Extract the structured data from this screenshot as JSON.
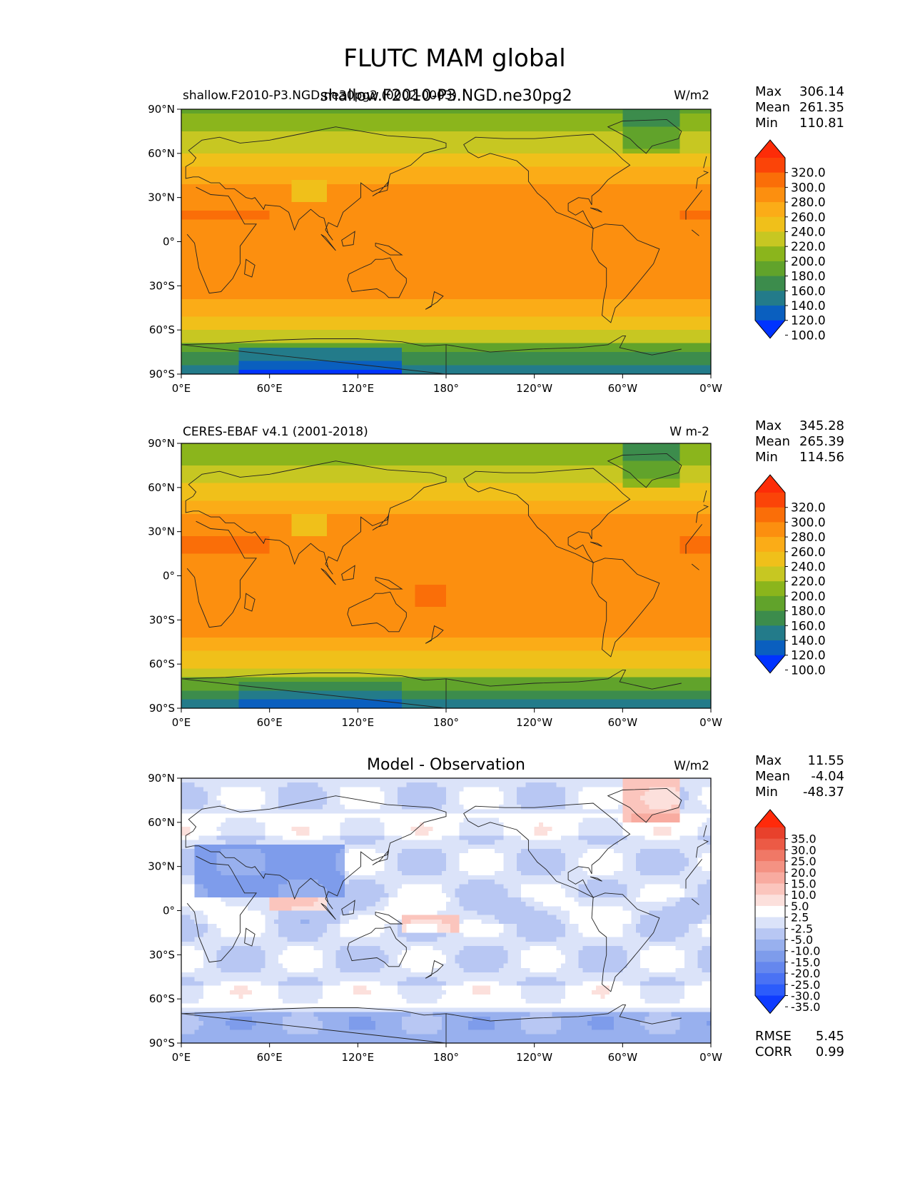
{
  "figure": {
    "title": "FLUTC MAM global"
  },
  "panels": [
    {
      "id": "test",
      "overlay_title": "shallow.F2010-P3.NGD.ne30pg2",
      "left_title": "shallow.F2010-P3.NGD.ne30pg2 (0002-0003)",
      "center_title": "",
      "units": "W/m2",
      "stats": {
        "max_label": "Max",
        "max": "306.14",
        "mean_label": "Mean",
        "mean": "261.35",
        "min_label": "Min",
        "min": "110.81"
      },
      "colorbar": "abs",
      "field": "test"
    },
    {
      "id": "ref",
      "overlay_title": "",
      "left_title": "CERES-EBAF v4.1 (2001-2018)",
      "center_title": "",
      "units": "W m-2",
      "stats": {
        "max_label": "Max",
        "max": "345.28",
        "mean_label": "Mean",
        "mean": "265.39",
        "min_label": "Min",
        "min": "114.56"
      },
      "colorbar": "abs",
      "field": "ref"
    },
    {
      "id": "diff",
      "overlay_title": "",
      "left_title": "",
      "center_title": "Model - Observation",
      "units": "W/m2",
      "stats": {
        "max_label": "Max",
        "max": "11.55",
        "mean_label": "Mean",
        "mean": "-4.04",
        "min_label": "Min",
        "min": "-48.37"
      },
      "metrics": {
        "rmse_label": "RMSE",
        "rmse": "5.45",
        "corr_label": "CORR",
        "corr": "0.99"
      },
      "colorbar": "diff",
      "field": "diff"
    }
  ],
  "axes": {
    "lat_ticks": [
      "90°N",
      "60°N",
      "30°N",
      "0°",
      "30°S",
      "60°S",
      "90°S"
    ],
    "lon_ticks": [
      "0°E",
      "60°E",
      "120°E",
      "180°",
      "120°W",
      "60°W",
      "0°W"
    ]
  },
  "colorbars": {
    "abs": {
      "labels": [
        "320.0",
        "300.0",
        "280.0",
        "260.0",
        "240.0",
        "220.0",
        "200.0",
        "180.0",
        "160.0",
        "140.0",
        "120.0",
        "100.0"
      ],
      "bounds": [
        100,
        120,
        140,
        160,
        180,
        200,
        220,
        240,
        260,
        280,
        300,
        320
      ],
      "colors": [
        "#0033ff",
        "#0a5fbf",
        "#237b8a",
        "#3c8c4c",
        "#61a32b",
        "#8bb51c",
        "#c7c722",
        "#f0c01a",
        "#fbac17",
        "#fc8f0f",
        "#fa6e08",
        "#fb4408",
        "#fd2c08"
      ]
    },
    "diff": {
      "labels": [
        "35.0",
        "30.0",
        "25.0",
        "20.0",
        "15.0",
        "10.0",
        "5.0",
        "2.5",
        "-2.5",
        "-5.0",
        "-10.0",
        "-15.0",
        "-20.0",
        "-25.0",
        "-30.0",
        "-35.0"
      ],
      "bounds": [
        -35,
        -30,
        -25,
        -20,
        -15,
        -10,
        -5,
        -2.5,
        2.5,
        5,
        10,
        15,
        20,
        25,
        30,
        35
      ],
      "colors": [
        "#0f3cff",
        "#2c5cfb",
        "#4a72f4",
        "#6587ee",
        "#7e9ceb",
        "#98b0ee",
        "#b8c7f3",
        "#dbe3f9",
        "#ffffff",
        "#fce0dc",
        "#fbc5bd",
        "#f8aba0",
        "#f49283",
        "#f07866",
        "#ec5a45",
        "#e8412c",
        "#ff2a0a"
      ]
    }
  }
}
